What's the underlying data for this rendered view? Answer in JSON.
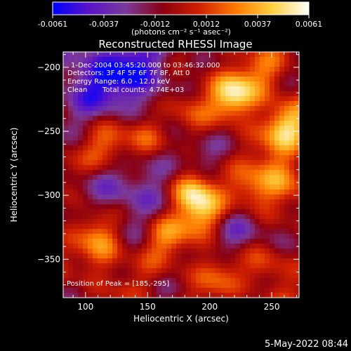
{
  "chart_data": {
    "type": "heatmap",
    "title": "Reconstructed RHESSI Image",
    "xlabel": "Heliocentric X (arcsec)",
    "ylabel": "Heliocentric Y (arcsec)",
    "xlim": [
      82,
      272
    ],
    "ylim": [
      -380,
      -188
    ],
    "x_ticks": [
      100,
      150,
      200,
      250
    ],
    "y_ticks": [
      -200,
      -250,
      -300,
      -350
    ],
    "colorbar": {
      "min": -0.0061,
      "max": 0.0061,
      "ticks": [
        "-0.0061",
        "-0.0037",
        "-0.0012",
        "0.0012",
        "0.0037",
        "0.0061"
      ],
      "unit_label": "(photons cm⁻² s⁻¹ asec⁻²)",
      "colors": [
        "#0000ff",
        "#5a14c8",
        "#7a3a9a",
        "#8a0010",
        "#d02000",
        "#ff7a00",
        "#ffd040",
        "#ffffff"
      ]
    },
    "annotations": {
      "time_range": "1-Dec-2004 03:45:20.000 to 03:46:32.000",
      "detectors": "Detectors: 3F 4F 5F 6F 7F 8F, Att 0",
      "energy": "Energy Range: 6.0 - 12.0 keV",
      "method": "Clean",
      "counts": "Total counts: 4.74E+03",
      "peak": "Position of Peak = [185,-295]"
    },
    "peaks": [
      {
        "x": 185,
        "y": -295,
        "amp": 1.0
      },
      {
        "x": 220,
        "y": -222,
        "amp": 0.8
      },
      {
        "x": 262,
        "y": -248,
        "amp": 0.72
      },
      {
        "x": 195,
        "y": -315,
        "amp": 0.55
      },
      {
        "x": 150,
        "y": -255,
        "amp": 0.5
      },
      {
        "x": 120,
        "y": -265,
        "amp": 0.42
      },
      {
        "x": 235,
        "y": -300,
        "amp": 0.55
      },
      {
        "x": 255,
        "y": -285,
        "amp": 0.5
      },
      {
        "x": 165,
        "y": -330,
        "amp": 0.45
      },
      {
        "x": 115,
        "y": -345,
        "amp": 0.35
      },
      {
        "x": 245,
        "y": -355,
        "amp": 0.45
      },
      {
        "x": 205,
        "y": -360,
        "amp": 0.35
      },
      {
        "x": 108,
        "y": -325,
        "amp": 0.3
      },
      {
        "x": 178,
        "y": -230,
        "amp": 0.35
      },
      {
        "x": 245,
        "y": -205,
        "amp": 0.3
      },
      {
        "x": 140,
        "y": -205,
        "amp": -0.7
      },
      {
        "x": 100,
        "y": -210,
        "amp": -0.5
      },
      {
        "x": 175,
        "y": -280,
        "amp": -0.45
      },
      {
        "x": 230,
        "y": -330,
        "amp": -0.4
      },
      {
        "x": 130,
        "y": -300,
        "amp": -0.4
      }
    ]
  },
  "footer": {
    "timestamp": "5-May-2022 08:44"
  }
}
